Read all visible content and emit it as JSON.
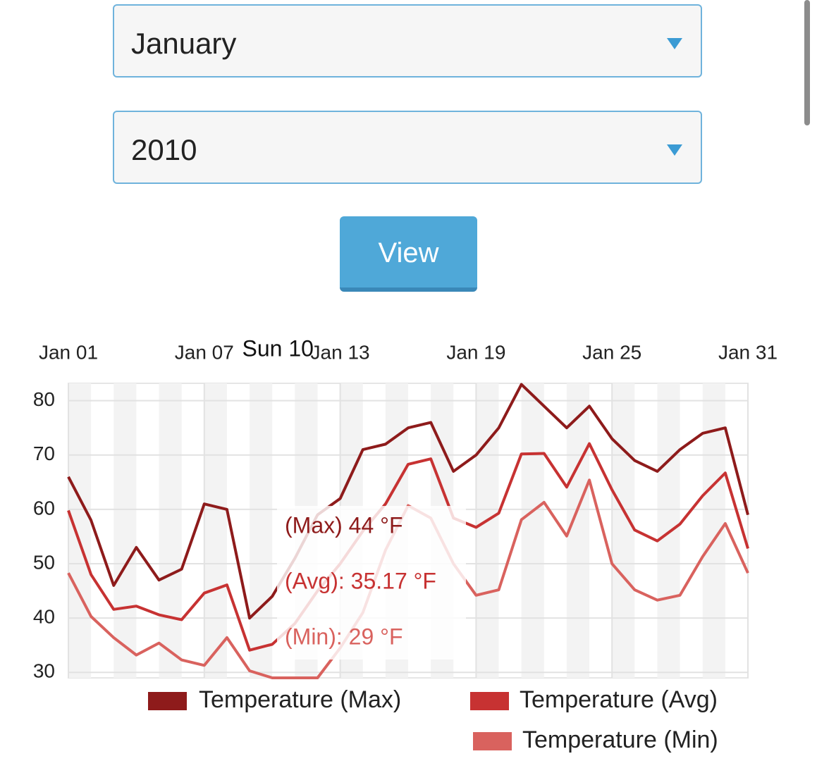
{
  "form": {
    "month": "January",
    "year": "2010",
    "button": "View"
  },
  "chart_data": {
    "type": "line",
    "categories": [
      "Jan 01",
      null,
      null,
      null,
      null,
      null,
      "Jan 07",
      null,
      null,
      null,
      null,
      null,
      "Jan 13",
      null,
      null,
      null,
      null,
      null,
      "Jan 19",
      null,
      null,
      null,
      null,
      null,
      "Jan 25",
      null,
      null,
      null,
      null,
      null,
      "Jan 31"
    ],
    "series": [
      {
        "name": "Temperature (Max)",
        "color": "#8e1b1b",
        "values": [
          66,
          58,
          46,
          53,
          47,
          49,
          61,
          60,
          40,
          44,
          51,
          59,
          62,
          71,
          72,
          75,
          76,
          67,
          70,
          75,
          83,
          79,
          75,
          79,
          73,
          69,
          67,
          71,
          74,
          75,
          59
        ]
      },
      {
        "name": "Temperature (Avg)",
        "color": "#c73232",
        "values": [
          59.8,
          48,
          41.6,
          42.2,
          40.6,
          39.7,
          44.6,
          46.1,
          34.1,
          35.17,
          39,
          45,
          50,
          56,
          61,
          68.3,
          69.3,
          58.4,
          56.7,
          59.3,
          70.2,
          70.3,
          64.1,
          72.1,
          63.6,
          56.2,
          54.2,
          57.3,
          62.5,
          66.7,
          52.8
        ]
      },
      {
        "name": "Temperature (Min)",
        "color": "#d9625e",
        "values": [
          48.3,
          40.3,
          36.4,
          33.2,
          35.4,
          32.3,
          31.3,
          36.4,
          30.3,
          29,
          29,
          29,
          34.5,
          41,
          52.5,
          60.7,
          58.4,
          50,
          44.2,
          45.2,
          58.1,
          61.3,
          55.1,
          65.4,
          50,
          45.2,
          43.3,
          44.2,
          51.3,
          57.4,
          48.3
        ]
      }
    ],
    "ylim": [
      29,
      83.2
    ],
    "yticks": [
      30,
      40,
      50,
      60,
      70,
      80
    ],
    "grid": true,
    "tooltip": {
      "title": "Sun 10",
      "lines": [
        "(Max) 44 °F",
        "(Avg): 35.17 °F",
        "(Min): 29 °F"
      ]
    }
  }
}
